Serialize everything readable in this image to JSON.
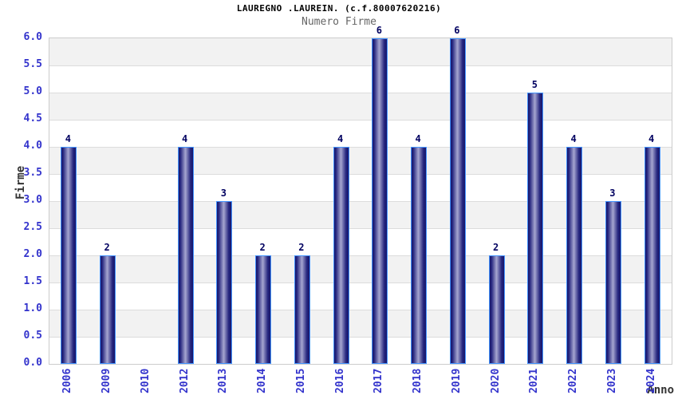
{
  "chart_data": {
    "type": "bar",
    "title": "LAUREGNO .LAUREIN. (c.f.80007620216)",
    "subtitle": "Numero Firme",
    "xlabel": "Anno",
    "ylabel": "Firme",
    "categories": [
      "2006",
      "2009",
      "2010",
      "2012",
      "2013",
      "2014",
      "2015",
      "2016",
      "2017",
      "2018",
      "2019",
      "2020",
      "2021",
      "2022",
      "2023",
      "2024"
    ],
    "values": [
      4,
      2,
      0,
      4,
      3,
      2,
      2,
      4,
      6,
      4,
      6,
      2,
      5,
      4,
      3,
      4
    ],
    "ylim": [
      0,
      6
    ],
    "ytick_step": 0.5,
    "ytick_format_decimals": 1,
    "grid": "alternating-horizontal-bands",
    "legend": "none",
    "colors": {
      "tick_label": "#3333cc",
      "value_label": "#000060",
      "title": "#000000",
      "subtitle": "#666666",
      "axis_label": "#333333",
      "band_gray": "#f2f2f2",
      "band_white": "#ffffff",
      "gridline": "#dcdcdc",
      "plot_border": "#cccccc",
      "bar_dark": "#16166b",
      "bar_mid": "#26267f",
      "bar_light": "#a6a6d0",
      "bar_border": "#4393ff"
    }
  }
}
